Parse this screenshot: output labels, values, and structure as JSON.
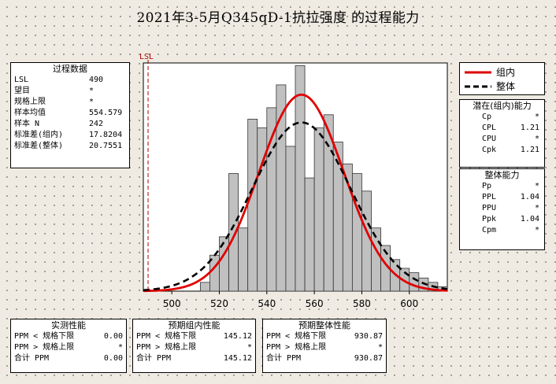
{
  "title": "2021年3-5月Q345qD-1抗拉强度 的过程能力",
  "process_data": {
    "header": "过程数据",
    "rows": [
      {
        "label": "LSL",
        "value": "490"
      },
      {
        "label": "望目",
        "value": "*"
      },
      {
        "label": "规格上限",
        "value": "*"
      },
      {
        "label": "样本均值",
        "value": "554.579"
      },
      {
        "label": "样本 N",
        "value": "242"
      },
      {
        "label": "标准差(组内)",
        "value": "17.8204"
      },
      {
        "label": "标准差(整体)",
        "value": "20.7551"
      }
    ]
  },
  "legend": {
    "within_label": "组内",
    "overall_label": "整体",
    "within_color": "#e00000",
    "overall_color": "#000000"
  },
  "within_capability": {
    "header": "潜在(组内)能力",
    "rows": [
      {
        "label": "Cp",
        "value": "*"
      },
      {
        "label": "CPL",
        "value": "1.21"
      },
      {
        "label": "CPU",
        "value": "*"
      },
      {
        "label": "Cpk",
        "value": "1.21"
      }
    ]
  },
  "overall_capability": {
    "header": "整体能力",
    "rows": [
      {
        "label": "Pp",
        "value": "*"
      },
      {
        "label": "PPL",
        "value": "1.04"
      },
      {
        "label": "PPU",
        "value": "*"
      },
      {
        "label": "Ppk",
        "value": "1.04"
      },
      {
        "label": "Cpm",
        "value": "*"
      }
    ]
  },
  "observed_performance": {
    "header": "实测性能",
    "rows": [
      {
        "label": "PPM < 规格下限",
        "value": "0.00"
      },
      {
        "label": "PPM > 规格上限",
        "value": "*"
      },
      {
        "label": "合计 PPM",
        "value": "0.00"
      }
    ]
  },
  "expected_within_performance": {
    "header": "预期组内性能",
    "rows": [
      {
        "label": "PPM < 规格下限",
        "value": "145.12"
      },
      {
        "label": "PPM > 规格上限",
        "value": "*"
      },
      {
        "label": "合计 PPM",
        "value": "145.12"
      }
    ]
  },
  "expected_overall_performance": {
    "header": "预期整体性能",
    "rows": [
      {
        "label": "PPM < 规格下限",
        "value": "930.87"
      },
      {
        "label": "PPM > 规格上限",
        "value": "*"
      },
      {
        "label": "合计 PPM",
        "value": "930.87"
      }
    ]
  },
  "chart_data": {
    "type": "bar",
    "subtype": "histogram-with-normal-curves",
    "lsl_label": "LSL",
    "lsl": 490,
    "bin_width": 4,
    "x_range": [
      488,
      616
    ],
    "y_range": [
      0,
      0.026
    ],
    "x_ticks": [
      500,
      520,
      540,
      560,
      580,
      600
    ],
    "bins": [
      {
        "start": 512,
        "density": 0.001
      },
      {
        "start": 516,
        "density": 0.0041
      },
      {
        "start": 520,
        "density": 0.0062
      },
      {
        "start": 524,
        "density": 0.0134
      },
      {
        "start": 528,
        "density": 0.0072
      },
      {
        "start": 532,
        "density": 0.0196
      },
      {
        "start": 536,
        "density": 0.0186
      },
      {
        "start": 540,
        "density": 0.0209
      },
      {
        "start": 544,
        "density": 0.0235
      },
      {
        "start": 548,
        "density": 0.0165
      },
      {
        "start": 552,
        "density": 0.0257
      },
      {
        "start": 556,
        "density": 0.0129
      },
      {
        "start": 560,
        "density": 0.0186
      },
      {
        "start": 564,
        "density": 0.0201
      },
      {
        "start": 568,
        "density": 0.017
      },
      {
        "start": 572,
        "density": 0.0145
      },
      {
        "start": 576,
        "density": 0.0134
      },
      {
        "start": 580,
        "density": 0.0114
      },
      {
        "start": 584,
        "density": 0.0072
      },
      {
        "start": 588,
        "density": 0.0052
      },
      {
        "start": 592,
        "density": 0.0036
      },
      {
        "start": 596,
        "density": 0.0026
      },
      {
        "start": 600,
        "density": 0.0021
      },
      {
        "start": 604,
        "density": 0.0015
      },
      {
        "start": 608,
        "density": 0.001
      },
      {
        "start": 612,
        "density": 0.0005
      }
    ],
    "series": [
      {
        "name": "组内",
        "mean": 554.579,
        "sd": 17.8204,
        "color": "#e00000",
        "style": "solid"
      },
      {
        "name": "整体",
        "mean": 554.579,
        "sd": 20.7551,
        "color": "#000000",
        "style": "dashed"
      }
    ],
    "grid": false
  }
}
